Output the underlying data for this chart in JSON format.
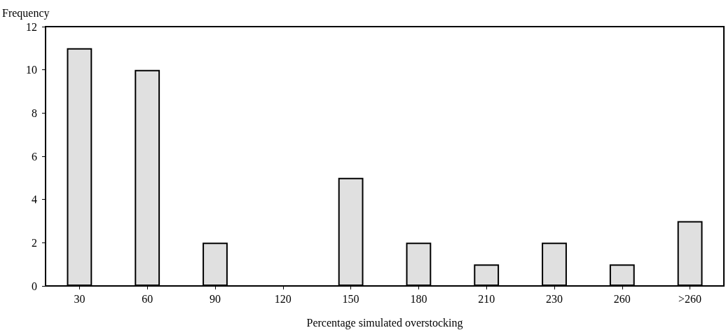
{
  "chart_data": {
    "type": "bar",
    "ylabel": "Frequency",
    "xlabel": "Percentage simulated overstocking",
    "categories": [
      "30",
      "60",
      "90",
      "120",
      "150",
      "180",
      "210",
      "230",
      "260",
      ">260"
    ],
    "values": [
      11,
      10,
      2,
      0,
      5,
      2,
      1,
      2,
      1,
      3
    ],
    "color": "#e0e0e0",
    "ylim": [
      0,
      12
    ],
    "yticks": [
      0,
      2,
      4,
      6,
      8,
      10,
      12
    ],
    "grid": false
  }
}
